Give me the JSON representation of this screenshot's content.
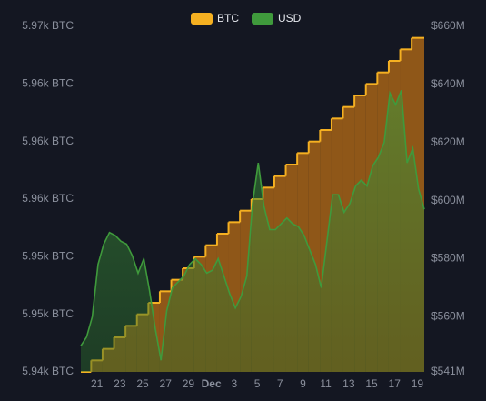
{
  "chart_data": {
    "type": "step-area-line",
    "legend": "top",
    "xlim": [
      19.6,
      49.6
    ],
    "xticks": [
      21,
      23,
      25,
      27,
      29,
      {
        "value": 31,
        "label": "Dec"
      },
      {
        "value": 33,
        "label": "3"
      },
      {
        "value": 35,
        "label": "5"
      },
      {
        "value": 37,
        "label": "7"
      },
      {
        "value": 39,
        "label": "9"
      },
      {
        "value": 41,
        "label": "11"
      },
      {
        "value": 43,
        "label": "13"
      },
      {
        "value": 45,
        "label": "15"
      },
      {
        "value": 47,
        "label": "17"
      },
      {
        "value": 49,
        "label": "19"
      }
    ],
    "ylim": [
      5940,
      5970
    ],
    "yticks": [
      {
        "value": 5970,
        "label": "5.97k BTC"
      },
      {
        "value": 5965,
        "label": "5.96k BTC"
      },
      {
        "value": 5960,
        "label": "5.96k BTC"
      },
      {
        "value": 5955,
        "label": "5.96k BTC"
      },
      {
        "value": 5950,
        "label": "5.95k BTC"
      },
      {
        "value": 5945,
        "label": "5.95k BTC"
      },
      {
        "value": 5940,
        "label": "5.94k BTC"
      }
    ],
    "y2lim": [
      541,
      660
    ],
    "y2ticks": [
      {
        "value": 660,
        "label": "$660M"
      },
      {
        "value": 640,
        "label": "$640M"
      },
      {
        "value": 620,
        "label": "$620M"
      },
      {
        "value": 600,
        "label": "$600M"
      },
      {
        "value": 580,
        "label": "$580M"
      },
      {
        "value": 560,
        "label": "$560M"
      },
      {
        "value": 541,
        "label": "$541M"
      }
    ],
    "series": [
      {
        "name": "BTC",
        "color": "#f5b021",
        "x": [
          19.6,
          20.5,
          21.5,
          22.5,
          23.5,
          24.5,
          25.5,
          26.5,
          27.5,
          28.5,
          29.5,
          30.5,
          31.5,
          32.5,
          33.5,
          34.5,
          35.5,
          36.5,
          37.5,
          38.5,
          39.5,
          40.5,
          41.5,
          42.5,
          43.5,
          44.5,
          45.5,
          46.5,
          47.5,
          48.5
        ],
        "values": [
          5940,
          5941,
          5942,
          5943,
          5944,
          5945,
          5946,
          5947,
          5948,
          5949,
          5950,
          5951,
          5952,
          5953,
          5954,
          5955,
          5956,
          5957,
          5958,
          5959,
          5960,
          5961,
          5962,
          5963,
          5964,
          5965,
          5966,
          5967,
          5968,
          5969
        ]
      },
      {
        "name": "USD",
        "color": "#3f9a3c",
        "axis": "y2",
        "x": [
          19.6,
          20.1,
          20.6,
          21.1,
          21.6,
          22.1,
          22.6,
          23.1,
          23.6,
          24.1,
          24.6,
          25.1,
          25.6,
          26.1,
          26.6,
          27.1,
          27.6,
          28.1,
          28.6,
          29.1,
          29.6,
          30.1,
          30.6,
          31.1,
          31.6,
          32.1,
          32.6,
          33.1,
          33.6,
          34.1,
          34.6,
          35.1,
          35.6,
          36.1,
          36.6,
          37.1,
          37.6,
          38.1,
          38.6,
          39.1,
          39.6,
          40.1,
          40.6,
          41.1,
          41.6,
          42.1,
          42.6,
          43.1,
          43.6,
          44.1,
          44.6,
          45.1,
          45.6,
          46.1,
          46.6,
          47.1,
          47.6,
          48.1,
          48.6,
          49.1,
          49.6
        ],
        "values": [
          550,
          553,
          560,
          578,
          585,
          589,
          588,
          586,
          585,
          581,
          575,
          580,
          569,
          556,
          545,
          562,
          570,
          572,
          574,
          578,
          580,
          578,
          575,
          576,
          580,
          574,
          568,
          563,
          567,
          574,
          599,
          613,
          598,
          590,
          590,
          592,
          594,
          592,
          591,
          588,
          583,
          578,
          570,
          586,
          602,
          602,
          596,
          599,
          605,
          607,
          605,
          612,
          615,
          620,
          637,
          633,
          638,
          613,
          618,
          604,
          597
        ]
      }
    ]
  }
}
